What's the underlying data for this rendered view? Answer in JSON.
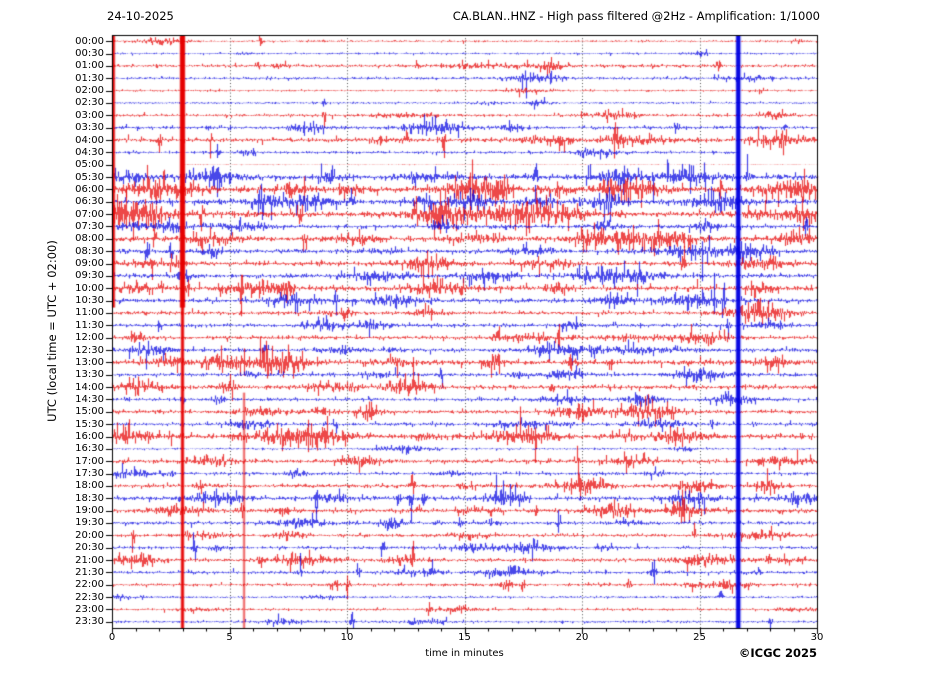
{
  "header": {
    "date": "24-10-2025",
    "title": "CA.BLAN..HNZ - High pass filtered @2Hz - Amplification: 1/1000"
  },
  "footer": {
    "copyright": "©ICGC 2025"
  },
  "chart_data": {
    "type": "line",
    "variant": "helicorder-seismogram",
    "station": "CA.BLAN..HNZ",
    "date": "24-10-2025",
    "filter": "High pass filtered @2Hz",
    "amplification": "1/1000",
    "xlabel": "time in minutes",
    "ylabel": "UTC (local time = UTC + 02:00)",
    "xlim": [
      0,
      30
    ],
    "x_ticks": [
      0,
      5,
      10,
      15,
      20,
      25,
      30
    ],
    "x_minor_tick_step": 1,
    "grid_minutes": [
      5,
      10,
      15,
      20,
      25
    ],
    "minutes_per_line": 30,
    "grid": "dotted vertical lines every 5 minutes",
    "trace_colors": {
      "red": "#e60000",
      "blue": "#0000e0"
    },
    "seed": 1234,
    "rows": [
      {
        "t": "00:00",
        "c": "red",
        "a": 0.5,
        "d": 2,
        "s": [
          [
            6.3,
            2
          ]
        ]
      },
      {
        "t": "00:30",
        "c": "blue",
        "a": 0.5,
        "d": 2,
        "s": []
      },
      {
        "t": "01:00",
        "c": "red",
        "a": 0.8,
        "d": 4,
        "s": [
          [
            6.2,
            2.5
          ],
          [
            13,
            2
          ],
          [
            25.8,
            3
          ]
        ]
      },
      {
        "t": "01:30",
        "c": "blue",
        "a": 0.7,
        "d": 3,
        "s": [
          [
            17.5,
            3
          ]
        ]
      },
      {
        "t": "02:00",
        "c": "red",
        "a": 0.5,
        "d": 2,
        "s": []
      },
      {
        "t": "02:30",
        "c": "blue",
        "a": 0.5,
        "d": 2,
        "s": [
          [
            9,
            1.5
          ]
        ]
      },
      {
        "t": "03:00",
        "c": "red",
        "a": 0.7,
        "d": 3,
        "s": [
          [
            9,
            2.5
          ]
        ]
      },
      {
        "t": "03:30",
        "c": "blue",
        "a": 0.9,
        "d": 4,
        "s": [
          [
            24,
            3
          ],
          [
            28.6,
            3
          ]
        ]
      },
      {
        "t": "04:00",
        "c": "red",
        "a": 1.2,
        "d": 6,
        "s": [
          [
            2,
            3
          ],
          [
            4.2,
            3
          ],
          [
            12.5,
            3
          ],
          [
            14.1,
            7
          ]
        ]
      },
      {
        "t": "04:30",
        "c": "blue",
        "a": 0.7,
        "d": 3,
        "s": [
          [
            4.5,
            2.5
          ],
          [
            6,
            2
          ]
        ],
        "x1": 26.65
      },
      {
        "t": "05:00",
        "c": "red",
        "a": 0.15,
        "d": 0,
        "s": [],
        "x0": 3.0
      },
      {
        "t": "05:30",
        "c": "blue",
        "a": 1.5,
        "d": 10,
        "s": [
          [
            18,
            4
          ],
          [
            20.3,
            4
          ],
          [
            23,
            4
          ],
          [
            25.2,
            4
          ],
          [
            27,
            3
          ]
        ]
      },
      {
        "t": "06:00",
        "c": "red",
        "a": 1.7,
        "d": 12,
        "s": [
          [
            1.5,
            3
          ],
          [
            7.5,
            4
          ],
          [
            25.9,
            5
          ],
          [
            29,
            3
          ]
        ]
      },
      {
        "t": "06:30",
        "c": "blue",
        "a": 1.4,
        "d": 8,
        "s": [
          [
            6.3,
            4
          ],
          [
            10.2,
            4
          ],
          [
            21.2,
            4
          ]
        ]
      },
      {
        "t": "07:00",
        "c": "red",
        "a": 1.7,
        "d": 11,
        "s": [
          [
            3.8,
            4
          ],
          [
            8,
            4
          ],
          [
            12.9,
            4
          ]
        ]
      },
      {
        "t": "07:30",
        "c": "blue",
        "a": 1.1,
        "d": 6,
        "s": [
          [
            16.8,
            3
          ],
          [
            29.5,
            3
          ]
        ]
      },
      {
        "t": "08:00",
        "c": "red",
        "a": 1.4,
        "d": 8,
        "s": [
          [
            1.8,
            4
          ],
          [
            8.2,
            4
          ]
        ]
      },
      {
        "t": "08:30",
        "c": "blue",
        "a": 1.2,
        "d": 7,
        "s": [
          [
            1.5,
            3
          ],
          [
            2.5,
            3
          ]
        ]
      },
      {
        "t": "09:00",
        "c": "red",
        "a": 1.2,
        "d": 6,
        "s": [
          [
            1.7,
            4
          ],
          [
            24.3,
            5
          ]
        ]
      },
      {
        "t": "09:30",
        "c": "blue",
        "a": 1.2,
        "d": 6,
        "s": [
          [
            20.2,
            4
          ]
        ]
      },
      {
        "t": "10:00",
        "c": "red",
        "a": 1.4,
        "d": 8,
        "s": [
          [
            1,
            3
          ],
          [
            2.1,
            3
          ],
          [
            3.2,
            3
          ],
          [
            5.5,
            3
          ]
        ]
      },
      {
        "t": "10:30",
        "c": "blue",
        "a": 1.2,
        "d": 6,
        "s": [
          [
            9.5,
            4
          ],
          [
            25.6,
            6
          ],
          [
            26,
            5
          ]
        ]
      },
      {
        "t": "11:00",
        "c": "red",
        "a": 1.0,
        "d": 5,
        "s": [
          [
            10,
            2.5
          ]
        ]
      },
      {
        "t": "11:30",
        "c": "blue",
        "a": 1.0,
        "d": 5,
        "s": [
          [
            2,
            3
          ],
          [
            26.2,
            3
          ]
        ]
      },
      {
        "t": "12:00",
        "c": "red",
        "a": 1.0,
        "d": 5,
        "s": [
          [
            19,
            3
          ],
          [
            19.6,
            3
          ]
        ]
      },
      {
        "t": "12:30",
        "c": "blue",
        "a": 1.1,
        "d": 6,
        "s": [
          [
            6.5,
            3
          ],
          [
            19.6,
            3
          ]
        ]
      },
      {
        "t": "13:00",
        "c": "red",
        "a": 1.4,
        "d": 8,
        "s": [
          [
            19.5,
            4
          ],
          [
            21.2,
            4
          ]
        ]
      },
      {
        "t": "13:30",
        "c": "blue",
        "a": 1.0,
        "d": 5,
        "s": [
          [
            14,
            3
          ]
        ]
      },
      {
        "t": "14:00",
        "c": "red",
        "a": 1.1,
        "d": 6,
        "s": [
          [
            18.7,
            3
          ]
        ]
      },
      {
        "t": "14:30",
        "c": "blue",
        "a": 0.9,
        "d": 4,
        "s": [
          [
            3,
            2.5
          ]
        ]
      },
      {
        "t": "15:00",
        "c": "red",
        "a": 1.1,
        "d": 6,
        "s": [
          [
            11,
            3
          ]
        ]
      },
      {
        "t": "15:30",
        "c": "blue",
        "a": 0.9,
        "d": 4,
        "s": [
          [
            9.5,
            3
          ],
          [
            25.5,
            3
          ]
        ]
      },
      {
        "t": "16:00",
        "c": "red",
        "a": 1.4,
        "d": 8,
        "s": [
          [
            0.6,
            3
          ],
          [
            1.5,
            3
          ],
          [
            2.5,
            3
          ]
        ]
      },
      {
        "t": "16:30",
        "c": "blue",
        "a": 0.5,
        "d": 2,
        "s": []
      },
      {
        "t": "17:00",
        "c": "red",
        "a": 1.1,
        "d": 6,
        "s": [
          [
            19.8,
            4
          ]
        ]
      },
      {
        "t": "17:30",
        "c": "blue",
        "a": 0.8,
        "d": 4,
        "s": [
          [
            2.5,
            2.5
          ]
        ]
      },
      {
        "t": "18:00",
        "c": "red",
        "a": 1.1,
        "d": 6,
        "s": [
          [
            12.8,
            4
          ],
          [
            19.9,
            3
          ]
        ]
      },
      {
        "t": "18:30",
        "c": "blue",
        "a": 1.2,
        "d": 6,
        "s": [
          [
            8.7,
            3
          ],
          [
            12.2,
            4
          ],
          [
            12.7,
            5
          ],
          [
            13.3,
            4
          ]
        ]
      },
      {
        "t": "19:00",
        "c": "red",
        "a": 1.2,
        "d": 6,
        "s": [
          [
            5.5,
            3
          ],
          [
            13,
            3
          ],
          [
            18,
            3
          ]
        ]
      },
      {
        "t": "19:30",
        "c": "blue",
        "a": 0.9,
        "d": 4,
        "s": [
          [
            14.8,
            3
          ],
          [
            19,
            3
          ]
        ]
      },
      {
        "t": "20:00",
        "c": "red",
        "a": 0.9,
        "d": 4,
        "s": [
          [
            0.9,
            4
          ],
          [
            24.8,
            3
          ]
        ]
      },
      {
        "t": "20:30",
        "c": "blue",
        "a": 0.8,
        "d": 4,
        "s": [
          [
            3.5,
            3
          ],
          [
            11.5,
            3
          ],
          [
            18,
            3
          ]
        ]
      },
      {
        "t": "21:00",
        "c": "red",
        "a": 1.0,
        "d": 5,
        "s": [
          [
            6.3,
            6
          ],
          [
            12.8,
            6
          ],
          [
            27.9,
            3
          ]
        ]
      },
      {
        "t": "21:30",
        "c": "blue",
        "a": 0.8,
        "d": 4,
        "s": [
          [
            8,
            3
          ],
          [
            10.5,
            3
          ],
          [
            23,
            4
          ]
        ]
      },
      {
        "t": "22:00",
        "c": "red",
        "a": 0.8,
        "d": 4,
        "s": [
          [
            10,
            4
          ],
          [
            17.5,
            3
          ],
          [
            22,
            3
          ]
        ]
      },
      {
        "t": "22:30",
        "c": "blue",
        "a": 0.6,
        "d": 3,
        "s": [
          [
            25.9,
            3
          ]
        ]
      },
      {
        "t": "23:00",
        "c": "red",
        "a": 0.6,
        "d": 3,
        "s": [
          [
            13.5,
            2
          ]
        ]
      },
      {
        "t": "23:30",
        "c": "blue",
        "a": 0.6,
        "d": 3,
        "s": [
          [
            10.2,
            4
          ],
          [
            28,
            2
          ]
        ]
      }
    ],
    "events": [
      {
        "color": "red",
        "x_min": 0.07,
        "from": "00:00",
        "to": "10:30",
        "w": 2
      },
      {
        "color": "red",
        "x_min": 3.0,
        "from": "00:00",
        "to": "23:30",
        "w": 2.5
      },
      {
        "color": "red",
        "x_min": 3.0,
        "from": "00:00",
        "to": "10:30",
        "w": 4.5
      },
      {
        "color": "red",
        "x_min": 5.62,
        "from": "14:30",
        "to": "23:30",
        "w": 0.8
      },
      {
        "color": "blue",
        "x_min": 26.65,
        "from": "00:00",
        "to": "23:30",
        "w": 4
      }
    ]
  }
}
